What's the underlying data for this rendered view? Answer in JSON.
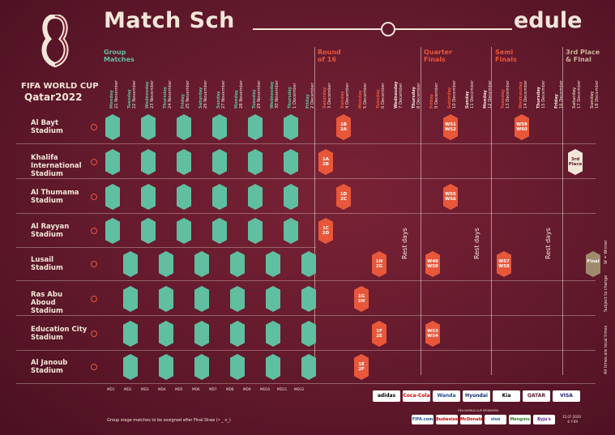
{
  "header": {
    "title_left": "Match Sch",
    "title_right": "edule",
    "brand_line1": "FIFA WORLD CUP",
    "brand_line2": "Qatar2022"
  },
  "sections": {
    "group": "Group Matches",
    "r16": "Round of 16",
    "qf": "Quarter Finals",
    "sf": "Semi Finals",
    "final": "3rd Place & Final"
  },
  "days": [
    {
      "wd": "Monday",
      "d": "21 November",
      "c": "g"
    },
    {
      "wd": "Tuesday",
      "d": "22 November",
      "c": "g"
    },
    {
      "wd": "Wednesday",
      "d": "23 November",
      "c": "g"
    },
    {
      "wd": "Thursday",
      "d": "24 November",
      "c": "g"
    },
    {
      "wd": "Friday",
      "d": "25 November",
      "c": "g"
    },
    {
      "wd": "Saturday",
      "d": "26 November",
      "c": "g"
    },
    {
      "wd": "Sunday",
      "d": "27 November",
      "c": "g"
    },
    {
      "wd": "Monday",
      "d": "28 November",
      "c": "g"
    },
    {
      "wd": "Tuesday",
      "d": "29 November",
      "c": "g"
    },
    {
      "wd": "Wednesday",
      "d": "30 November",
      "c": "g"
    },
    {
      "wd": "Thursday",
      "d": "1 December",
      "c": "g"
    },
    {
      "wd": "Friday",
      "d": "2 December",
      "c": "g"
    },
    {
      "wd": "Saturday",
      "d": "3 December",
      "c": "o"
    },
    {
      "wd": "Sunday",
      "d": "4 December",
      "c": "o"
    },
    {
      "wd": "Monday",
      "d": "5 December",
      "c": "o"
    },
    {
      "wd": "Tuesday",
      "d": "6 December",
      "c": "o"
    },
    {
      "wd": "Wednesday",
      "d": "7 December",
      "c": "n"
    },
    {
      "wd": "Thursday",
      "d": "8 December",
      "c": "n"
    },
    {
      "wd": "Friday",
      "d": "9 December",
      "c": "o"
    },
    {
      "wd": "Saturday",
      "d": "10 December",
      "c": "o"
    },
    {
      "wd": "Sunday",
      "d": "11 December",
      "c": "n"
    },
    {
      "wd": "Monday",
      "d": "12 December",
      "c": "n"
    },
    {
      "wd": "Tuesday",
      "d": "13 December",
      "c": "o"
    },
    {
      "wd": "Wednesday",
      "d": "14 December",
      "c": "o"
    },
    {
      "wd": "Thursday",
      "d": "15 December",
      "c": "n"
    },
    {
      "wd": "Friday",
      "d": "16 December",
      "c": "n"
    },
    {
      "wd": "Saturday",
      "d": "17 December",
      "c": "k"
    },
    {
      "wd": "Sunday",
      "d": "18 December",
      "c": "k"
    }
  ],
  "stadiums": [
    "Al Bayt Stadium",
    "Khalifa International Stadium",
    "Al Thumama Stadium",
    "Al Rayyan Stadium",
    "Lusail Stadium",
    "Ras Abu Aboud Stadium",
    "Education City Stadium",
    "Al Janoub Stadium"
  ],
  "rest_label": "Rest days",
  "knockout": {
    "r16_albayt": [
      "1B",
      "2A"
    ],
    "r16_khalifa": [
      "1A",
      "2B"
    ],
    "r16_thumama": [
      "1D",
      "2C"
    ],
    "r16_rayyan": [
      "1C",
      "2D"
    ],
    "r16_lusail": [
      "1H",
      "2G"
    ],
    "r16_ras": [
      "1G",
      "2H"
    ],
    "r16_edu": [
      "1F",
      "2E"
    ],
    "r16_janoub": [
      "1E",
      "2F"
    ],
    "qf_albayt": [
      "W51",
      "W52"
    ],
    "qf_thumama": [
      "W55",
      "W56"
    ],
    "qf_lusail": [
      "W49",
      "W50"
    ],
    "qf_edu": [
      "W53",
      "W54"
    ],
    "sf_albayt": [
      "W59",
      "W60"
    ],
    "sf_lusail": [
      "W57",
      "W58"
    ],
    "third": [
      "3rd",
      "Place"
    ],
    "final": [
      "Final"
    ]
  },
  "matchdays": [
    "MD1",
    "MD2",
    "MD3",
    "MD4",
    "MD5",
    "MD6",
    "MD7",
    "MD8",
    "MD9",
    "MD10",
    "MD11",
    "MD12"
  ],
  "footnote": "Group stage matches to be assigned after Final Draw (• _ x_)",
  "side_notes": [
    "All times are local times",
    "Subject to change",
    "W = Winner"
  ],
  "sponsors": [
    "adidas",
    "Coca-Cola",
    "Wanda",
    "Hyundai",
    "Kia",
    "QATAR AIRWAYS",
    "VISA"
  ],
  "sponsors2": [
    "FIFA.com",
    "Budweiser",
    "McDonald's",
    "vivo",
    "Mengniu",
    "Byju's"
  ],
  "sponsor_label": "FIFA WORLD CUP SPONSORS",
  "date": "15.07.2020",
  "copyright": "© FIFA",
  "colors": {
    "green": "#5fbfa0",
    "orange": "#e8573a",
    "cream": "#f2e6d8",
    "bg": "#62192c"
  }
}
